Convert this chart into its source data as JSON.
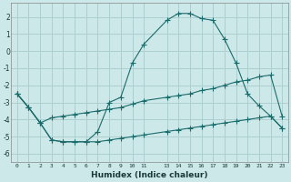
{
  "xlabel": "Humidex (Indice chaleur)",
  "bg_color": "#cde8e8",
  "grid_color": "#aecfcf",
  "line_color": "#1a6b6b",
  "xlim": [
    -0.5,
    23.5
  ],
  "ylim": [
    -6.5,
    2.8
  ],
  "xticks": [
    0,
    1,
    2,
    3,
    4,
    5,
    6,
    7,
    8,
    9,
    10,
    11,
    13,
    14,
    15,
    16,
    17,
    18,
    19,
    20,
    21,
    22,
    23
  ],
  "xtick_labels": [
    "0",
    "1",
    "2",
    "3",
    "4",
    "5",
    "6",
    "7",
    "8",
    "9",
    "10",
    "11",
    "13",
    "14",
    "15",
    "16",
    "17",
    "18",
    "19",
    "20",
    "21",
    "22",
    "23"
  ],
  "yticks": [
    -6,
    -5,
    -4,
    -3,
    -2,
    -1,
    0,
    1,
    2
  ],
  "curve1_x": [
    0,
    1,
    2,
    3,
    4,
    5,
    6,
    7,
    8,
    9,
    10,
    11,
    13,
    14,
    15,
    16,
    17,
    18,
    19,
    20,
    21,
    22,
    23
  ],
  "curve1_y": [
    -2.5,
    -3.3,
    -4.2,
    -5.2,
    -5.3,
    -5.3,
    -5.3,
    -4.7,
    -3.0,
    -2.7,
    -0.7,
    0.4,
    1.8,
    2.2,
    2.2,
    1.9,
    1.8,
    0.7,
    -0.7,
    -2.5,
    -3.2,
    -3.8,
    -4.5
  ],
  "curve2_x": [
    0,
    1,
    2,
    3,
    4,
    5,
    6,
    7,
    8,
    9,
    10,
    11,
    13,
    14,
    15,
    16,
    17,
    18,
    19,
    20,
    21,
    22,
    23
  ],
  "curve2_y": [
    -2.5,
    -3.3,
    -4.2,
    -3.9,
    -3.8,
    -3.7,
    -3.6,
    -3.5,
    -3.4,
    -3.3,
    -3.1,
    -2.9,
    -2.7,
    -2.6,
    -2.5,
    -2.3,
    -2.2,
    -2.0,
    -1.8,
    -1.7,
    -1.5,
    -1.4,
    -3.8
  ],
  "curve3_x": [
    0,
    1,
    2,
    3,
    4,
    5,
    6,
    7,
    8,
    9,
    10,
    11,
    13,
    14,
    15,
    16,
    17,
    18,
    19,
    20,
    21,
    22,
    23
  ],
  "curve3_y": [
    -2.5,
    -3.3,
    -4.2,
    -5.2,
    -5.3,
    -5.3,
    -5.3,
    -5.3,
    -5.2,
    -5.1,
    -5.0,
    -4.9,
    -4.7,
    -4.6,
    -4.5,
    -4.4,
    -4.3,
    -4.2,
    -4.1,
    -4.0,
    -3.9,
    -3.8,
    -4.5
  ],
  "markersize": 2.5
}
